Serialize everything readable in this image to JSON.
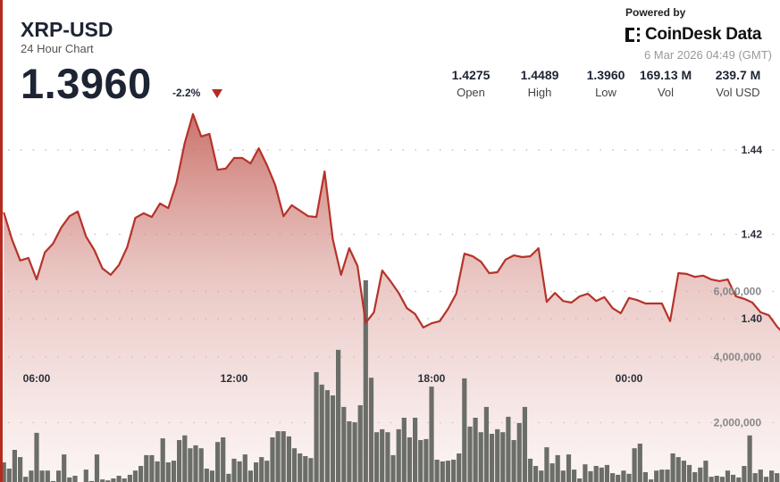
{
  "header": {
    "title": "XRP-USD",
    "subtitle": "24 Hour Chart",
    "price": "1.3960",
    "change": "-2.2%",
    "change_direction": "down",
    "powered_by": "Powered by",
    "brand": "CoinDesk Data",
    "timestamp": "6 Mar 2026 04:49 (GMT)"
  },
  "stats": [
    {
      "value": "1.4275",
      "label": "Open"
    },
    {
      "value": "1.4489",
      "label": "High"
    },
    {
      "value": "1.3960",
      "label": "Low"
    },
    {
      "value": "169.13 M",
      "label": "Vol"
    },
    {
      "value": "239.7 M",
      "label": "Vol USD"
    }
  ],
  "colors": {
    "accent": "#b62a1f",
    "line": "#b5332a",
    "volume": "#6b6e68",
    "text": "#1d2433"
  },
  "chart_data": {
    "type": "line",
    "grid": true,
    "x_ticks": [
      "06:00",
      "12:00",
      "18:00",
      "00:00"
    ],
    "price_ticks": [
      "1.40",
      "1.42",
      "1.44"
    ],
    "price_tick_values": [
      1.4,
      1.42,
      1.44
    ],
    "volume_ticks": [
      "2,000,000",
      "4,000,000",
      "6,000,000"
    ],
    "volume_tick_values": [
      2000000,
      4000000,
      6000000
    ],
    "price": {
      "x": [
        "05:00",
        "05:15",
        "05:30",
        "05:45",
        "06:00",
        "06:15",
        "06:30",
        "06:45",
        "07:00",
        "07:15",
        "07:30",
        "07:45",
        "08:00",
        "08:15",
        "08:30",
        "08:45",
        "09:00",
        "09:15",
        "09:30",
        "09:45",
        "10:00",
        "10:15",
        "10:30",
        "10:45",
        "11:00",
        "11:15",
        "11:30",
        "11:45",
        "12:00",
        "12:15",
        "12:30",
        "12:45",
        "13:00",
        "13:15",
        "13:30",
        "13:45",
        "14:00",
        "14:15",
        "14:30",
        "14:45",
        "15:00",
        "15:15",
        "15:30",
        "15:45",
        "16:00",
        "16:15",
        "16:30",
        "16:45",
        "17:00",
        "17:15",
        "17:30",
        "17:45",
        "18:00",
        "18:15",
        "18:30",
        "18:45",
        "19:00",
        "19:15",
        "19:30",
        "19:45",
        "20:00",
        "20:15",
        "20:30",
        "20:45",
        "21:00",
        "21:15",
        "21:30",
        "21:45",
        "22:00",
        "22:15",
        "22:30",
        "22:45",
        "23:00",
        "23:15",
        "23:30",
        "23:45",
        "00:00",
        "00:15",
        "00:30",
        "00:45",
        "01:00",
        "01:15",
        "01:30",
        "01:45",
        "02:00",
        "02:15",
        "02:30",
        "02:45",
        "03:00",
        "03:15",
        "03:30",
        "03:45",
        "04:00",
        "04:15",
        "04:30",
        "04:45"
      ],
      "values": [
        1.4252,
        1.4188,
        1.4138,
        1.4144,
        1.4093,
        1.4157,
        1.4178,
        1.4216,
        1.4243,
        1.4254,
        1.4195,
        1.4163,
        1.4119,
        1.4104,
        1.4127,
        1.4169,
        1.4239,
        1.425,
        1.4241,
        1.4273,
        1.4262,
        1.4322,
        1.4417,
        1.4485,
        1.4432,
        1.4438,
        1.4353,
        1.4356,
        1.4381,
        1.4381,
        1.4368,
        1.4404,
        1.4364,
        1.4317,
        1.4243,
        1.4269,
        1.4256,
        1.4243,
        1.4241,
        1.4349,
        1.4188,
        1.4104,
        1.4167,
        1.4125,
        1.399,
        1.4015,
        1.4114,
        1.4089,
        1.4061,
        1.4025,
        1.4011,
        1.3979,
        1.3989,
        1.3994,
        1.4023,
        1.4059,
        1.4154,
        1.4148,
        1.4135,
        1.4108,
        1.411,
        1.414,
        1.415,
        1.4146,
        1.4148,
        1.4167,
        1.404,
        1.4061,
        1.4042,
        1.4038,
        1.4053,
        1.4059,
        1.4042,
        1.4051,
        1.4025,
        1.4013,
        1.4049,
        1.4044,
        1.4036,
        1.4036,
        1.4036,
        1.3994,
        1.4108,
        1.4106,
        1.4099,
        1.4102,
        1.4093,
        1.4089,
        1.4093,
        1.4053,
        1.4047,
        1.4038,
        1.4015,
        1.4008,
        1.3981,
        1.396
      ]
    },
    "volume": {
      "x": [
        "05:00",
        "05:10",
        "05:20",
        "05:30",
        "05:40",
        "05:50",
        "06:00",
        "06:10",
        "06:20",
        "06:30",
        "06:40",
        "06:50",
        "07:00",
        "07:10",
        "07:20",
        "07:30",
        "07:40",
        "07:50",
        "08:00",
        "08:10",
        "08:20",
        "08:30",
        "08:40",
        "08:50",
        "09:00",
        "09:10",
        "09:20",
        "09:30",
        "09:40",
        "09:50",
        "10:00",
        "10:10",
        "10:20",
        "10:30",
        "10:40",
        "10:50",
        "11:00",
        "11:10",
        "11:20",
        "11:30",
        "11:40",
        "11:50",
        "12:00",
        "12:10",
        "12:20",
        "12:30",
        "12:40",
        "12:50",
        "13:00",
        "13:10",
        "13:20",
        "13:30",
        "13:40",
        "13:50",
        "14:00",
        "14:10",
        "14:20",
        "14:30",
        "14:40",
        "14:50",
        "15:00",
        "15:10",
        "15:20",
        "15:30",
        "15:40",
        "15:50",
        "16:00",
        "16:10",
        "16:20",
        "16:30",
        "16:40",
        "16:50",
        "17:00",
        "17:10",
        "17:20",
        "17:30",
        "17:40",
        "17:50",
        "18:00",
        "18:10",
        "18:20",
        "18:30",
        "18:40",
        "18:50",
        "19:00",
        "19:10",
        "19:20",
        "19:30",
        "19:40",
        "19:50",
        "20:00",
        "20:10",
        "20:20",
        "20:30",
        "20:40",
        "20:50",
        "21:00",
        "21:10",
        "21:20",
        "21:30",
        "21:40",
        "21:50",
        "22:00",
        "22:10",
        "22:20",
        "22:30",
        "22:40",
        "22:50",
        "23:00",
        "23:10",
        "23:20",
        "23:30",
        "23:40",
        "23:50",
        "00:00",
        "00:10",
        "00:20",
        "00:30",
        "00:40",
        "00:50",
        "01:00",
        "01:10",
        "01:20",
        "01:30",
        "01:40",
        "01:50",
        "02:00",
        "02:10",
        "02:20",
        "02:30",
        "02:40",
        "02:50",
        "03:00",
        "03:10",
        "03:20",
        "03:30",
        "03:40",
        "03:50",
        "04:00",
        "04:10",
        "04:20",
        "04:30",
        "04:40"
      ],
      "values": [
        790000,
        600000,
        1170000,
        950000,
        350000,
        540000,
        1690000,
        540000,
        540000,
        220000,
        540000,
        1030000,
        330000,
        380000,
        110000,
        570000,
        220000,
        1030000,
        270000,
        240000,
        300000,
        380000,
        300000,
        410000,
        540000,
        680000,
        1010000,
        1010000,
        820000,
        1520000,
        790000,
        840000,
        1470000,
        1610000,
        1220000,
        1310000,
        1220000,
        600000,
        540000,
        1410000,
        1550000,
        440000,
        900000,
        820000,
        1030000,
        540000,
        790000,
        950000,
        840000,
        1550000,
        1740000,
        1740000,
        1580000,
        1220000,
        1060000,
        980000,
        920000,
        3540000,
        3160000,
        2990000,
        2830000,
        4220000,
        2480000,
        2040000,
        2010000,
        2530000,
        6340000,
        3370000,
        1710000,
        1800000,
        1710000,
        1010000,
        1800000,
        2150000,
        1550000,
        2150000,
        1470000,
        1500000,
        3100000,
        870000,
        820000,
        840000,
        870000,
        1060000,
        3350000,
        1880000,
        2150000,
        1710000,
        2480000,
        1660000,
        1800000,
        1710000,
        2180000,
        1470000,
        1990000,
        2480000,
        900000,
        680000,
        540000,
        1250000,
        760000,
        1010000,
        540000,
        1030000,
        570000,
        300000,
        730000,
        520000,
        680000,
        630000,
        710000,
        460000,
        410000,
        540000,
        440000,
        1220000,
        1360000,
        490000,
        270000,
        540000,
        570000,
        570000,
        1060000,
        950000,
        840000,
        710000,
        490000,
        630000,
        840000,
        350000,
        380000,
        350000,
        540000,
        410000,
        330000,
        680000,
        1610000,
        460000,
        570000,
        350000,
        540000,
        460000,
        1930000
      ]
    }
  }
}
